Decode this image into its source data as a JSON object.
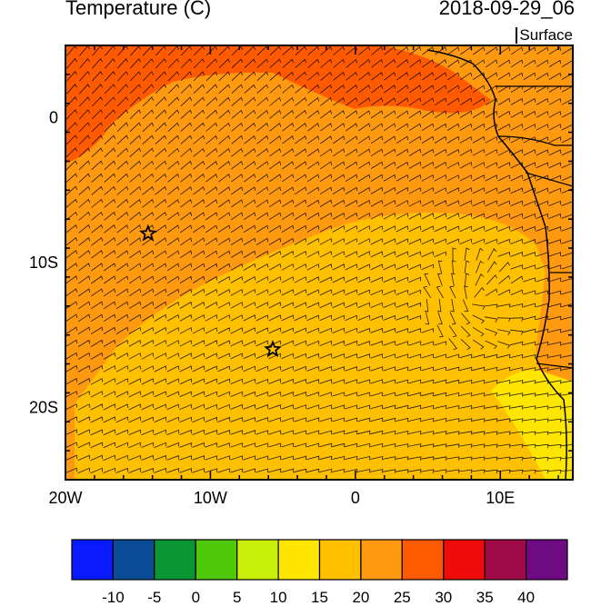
{
  "header": {
    "title_left": "Temperature (C)",
    "title_right": "2018-09-29_06",
    "level": "Surface"
  },
  "map": {
    "lon_range": [
      -20,
      15
    ],
    "lat_range": [
      -25,
      5
    ],
    "x_ticks": [
      {
        "value": -20,
        "label": "20W"
      },
      {
        "value": -10,
        "label": "10W"
      },
      {
        "value": 0,
        "label": "0"
      },
      {
        "value": 10,
        "label": "10E"
      }
    ],
    "y_ticks": [
      {
        "value": 0,
        "label": "0"
      },
      {
        "value": -10,
        "label": "10S"
      },
      {
        "value": -20,
        "label": "20S"
      }
    ],
    "markers": [
      {
        "type": "star",
        "lon": -14.3,
        "lat": -8.0
      },
      {
        "type": "star",
        "lon": -5.7,
        "lat": -16.0
      }
    ]
  },
  "colorbar": {
    "colors": [
      "#0a1aff",
      "#0a4c96",
      "#0a9632",
      "#50c80a",
      "#c8f00a",
      "#ffe600",
      "#ffc000",
      "#ff9a10",
      "#ff5a00",
      "#f00a0a",
      "#a00a46",
      "#6e0a82"
    ],
    "labels": [
      "-10",
      "-5",
      "0",
      "5",
      "10",
      "15",
      "20",
      "25",
      "30",
      "35",
      "40"
    ]
  },
  "colors": {
    "region_hot": "#ff5a00",
    "region_warm": "#ff9a10",
    "region_mild": "#ffc000",
    "region_cool": "#ffe600"
  }
}
